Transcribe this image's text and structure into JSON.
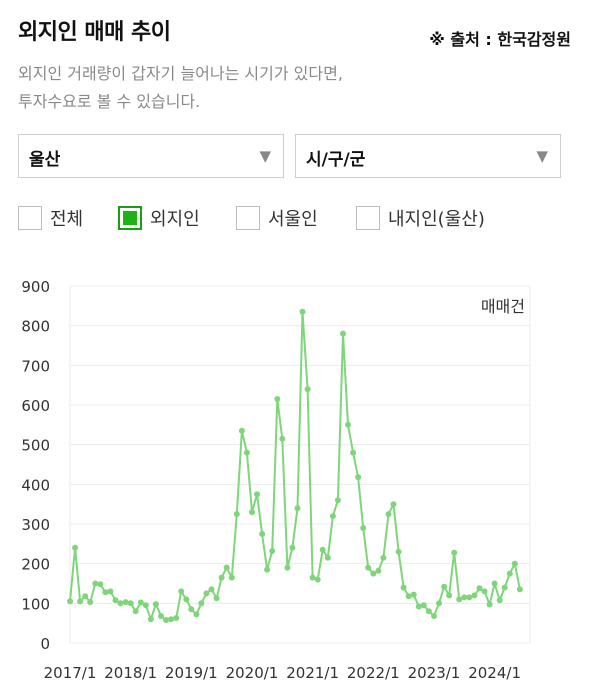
{
  "header": {
    "title": "외지인 매매 추이",
    "source": "※ 출처 : 한국감정원",
    "description_line1": "외지인 거래량이 갑자기 늘어나는 시기가 있다면,",
    "description_line2": "투자수요로 볼 수 있습니다."
  },
  "filters": {
    "region": "울산",
    "district": "시/구/군",
    "caret": "▼"
  },
  "legend_options": [
    {
      "label": "전체",
      "checked": false
    },
    {
      "label": "외지인",
      "checked": true
    },
    {
      "label": "서울인",
      "checked": false
    },
    {
      "label": "내지인(울산)",
      "checked": false
    }
  ],
  "colors": {
    "series": "#7fd67a",
    "checked": "#1db314",
    "grid": "#ececec"
  },
  "chart_data": {
    "type": "line",
    "unit_label": "매매건",
    "ylim": [
      0,
      900
    ],
    "yticks": [
      0,
      100,
      200,
      300,
      400,
      500,
      600,
      700,
      800,
      900
    ],
    "xticks": [
      "2017/1",
      "2018/1",
      "2019/1",
      "2020/1",
      "2021/1",
      "2022/1",
      "2023/1",
      "2024/1"
    ],
    "x_start": "2017/1",
    "x_end": "2024/8",
    "grid": true,
    "series": [
      {
        "values": [
          105,
          240,
          105,
          118,
          103,
          150,
          148,
          128,
          130,
          108,
          100,
          103,
          100,
          80,
          102,
          95,
          60,
          98,
          68,
          58,
          60,
          63,
          130,
          110,
          85,
          72,
          100,
          125,
          135,
          113,
          165,
          190,
          165,
          325,
          535,
          480,
          330,
          375,
          275,
          185,
          232,
          615,
          515,
          190,
          240,
          340,
          835,
          640,
          165,
          160,
          235,
          215,
          320,
          360,
          780,
          550,
          480,
          418,
          290,
          190,
          175,
          182,
          215,
          325,
          350,
          230,
          140,
          118,
          122,
          92,
          95,
          80,
          68,
          100,
          142,
          120,
          228,
          110,
          115,
          115,
          120,
          138,
          130,
          97,
          150,
          108,
          140,
          175,
          200,
          135
        ]
      }
    ]
  }
}
